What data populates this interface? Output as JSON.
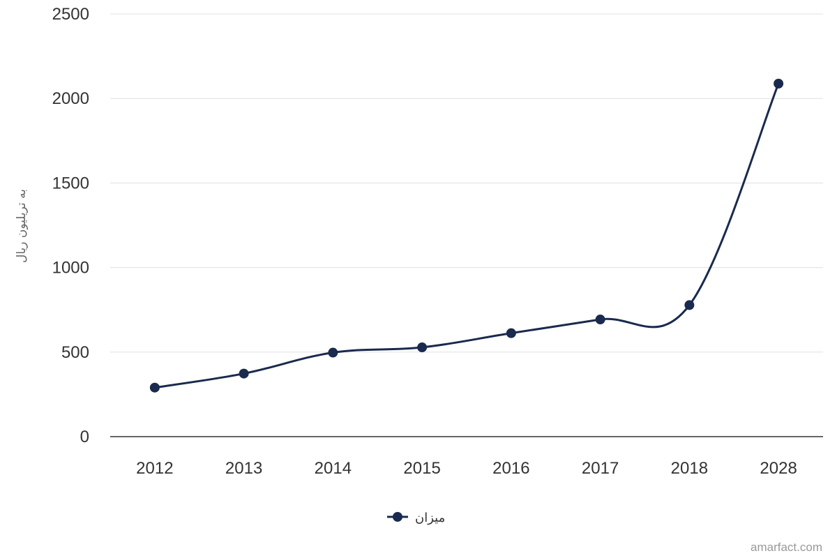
{
  "chart_data": {
    "type": "line",
    "categories": [
      "2012",
      "2013",
      "2014",
      "2015",
      "2016",
      "2017",
      "2018",
      "2028"
    ],
    "series": [
      {
        "name": "میزان",
        "values": [
          290,
          373,
          497,
          528,
          612,
          693,
          778,
          2088
        ],
        "color": "#1a2a4e"
      }
    ],
    "title": "",
    "xlabel": "",
    "ylabel": "به تریلیون ریال",
    "ylim": [
      0,
      2500
    ],
    "yticks": [
      0,
      500,
      1000,
      1500,
      2000,
      2500
    ],
    "grid": true,
    "smooth": true,
    "legend": "bottom-center"
  },
  "watermark": "amarfact.com"
}
